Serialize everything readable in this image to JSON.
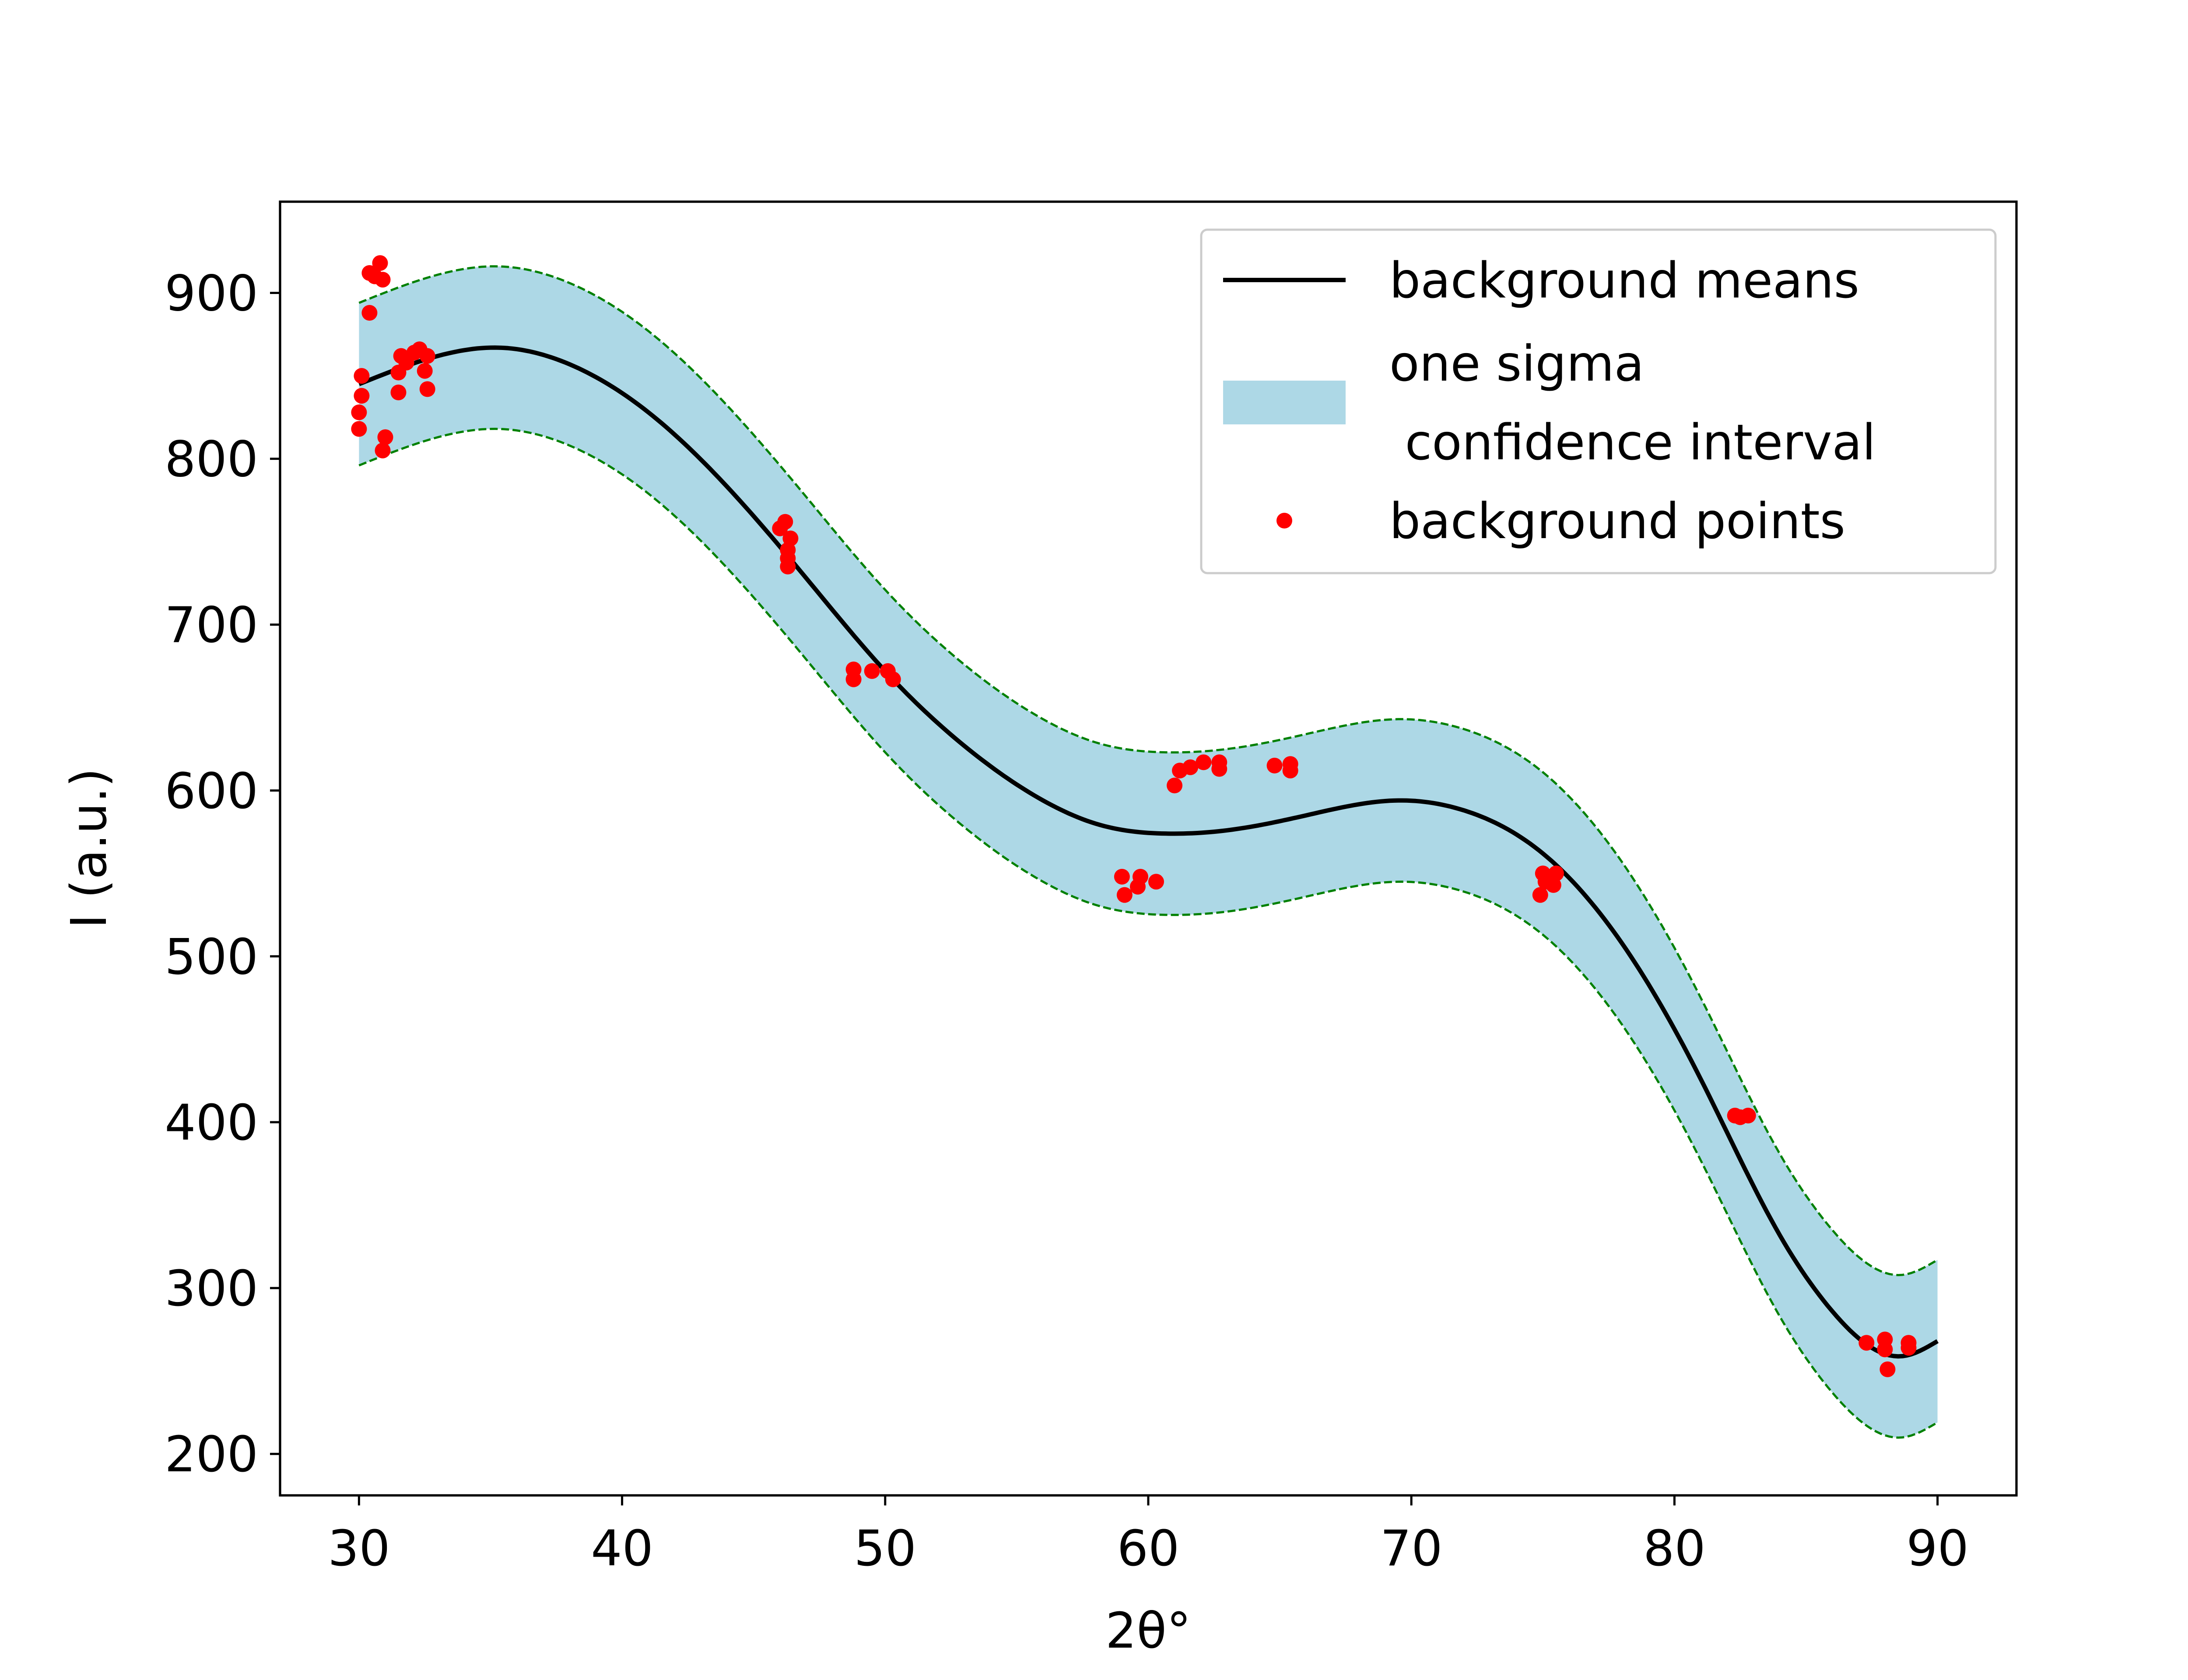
{
  "chart_data": {
    "type": "line",
    "xlabel": "2θ°",
    "ylabel": "I (a.u.)",
    "xlim": [
      27,
      93
    ],
    "ylim": [
      175,
      955
    ],
    "xticks": [
      30,
      40,
      50,
      60,
      70,
      80,
      90
    ],
    "yticks": [
      200,
      300,
      400,
      500,
      600,
      700,
      800,
      900
    ],
    "grid": false,
    "legend_position": "top-right",
    "legend": [
      {
        "label": "background means",
        "kind": "line",
        "color": "#000000"
      },
      {
        "label": "one sigma\n confidence interval",
        "kind": "patch",
        "color": "#add8e6"
      },
      {
        "label": "background points",
        "kind": "marker",
        "color": "#ff0000"
      }
    ],
    "mean_curve": {
      "name": "background means",
      "color": "#000000",
      "x": [
        30,
        33,
        35.3,
        38,
        41,
        44,
        47,
        50,
        53,
        56,
        58,
        60.7,
        63,
        66,
        69.6,
        72,
        75,
        78,
        81,
        84,
        86,
        88.7,
        90
      ],
      "y": [
        845,
        862,
        867,
        857,
        828,
        783,
        728,
        672,
        627,
        594,
        580,
        574,
        576,
        585,
        594,
        588,
        562,
        508,
        426,
        332,
        286,
        259,
        268
      ]
    },
    "band": {
      "name": "one sigma\n confidence interval",
      "fill": "#add8e6",
      "edge_color": "#008000",
      "sigma": 49
    },
    "points": {
      "name": "background points",
      "color": "#ff0000",
      "x": [
        30.1,
        30.1,
        30.0,
        30.0,
        30.4,
        30.6,
        30.4,
        30.8,
        30.9,
        30.9,
        31.0,
        31.5,
        31.5,
        31.6,
        31.8,
        32.1,
        32.3,
        32.6,
        32.5,
        32.6,
        46.0,
        46.2,
        46.4,
        46.3,
        46.3,
        46.3,
        48.8,
        48.8,
        49.5,
        50.1,
        50.3,
        59.0,
        59.1,
        59.6,
        59.7,
        60.3,
        61.0,
        61.2,
        61.6,
        62.1,
        62.7,
        62.7,
        64.8,
        65.4,
        65.4,
        75.0,
        74.9,
        75.1,
        75.4,
        75.5,
        82.3,
        82.5,
        82.8,
        87.3,
        88.0,
        88.0,
        88.1,
        88.9,
        88.9
      ],
      "y": [
        850,
        838,
        828,
        818,
        888,
        910,
        912,
        918,
        908,
        805,
        813,
        840,
        852,
        862,
        858,
        864,
        866,
        842,
        853,
        862,
        758,
        762,
        752,
        740,
        735,
        745,
        667,
        673,
        672,
        672,
        667,
        548,
        537,
        542,
        548,
        545,
        603,
        612,
        614,
        617,
        613,
        617,
        615,
        612,
        616,
        550,
        537,
        545,
        543,
        550,
        404,
        403,
        404,
        267,
        269,
        263,
        251,
        264,
        267
      ]
    }
  }
}
